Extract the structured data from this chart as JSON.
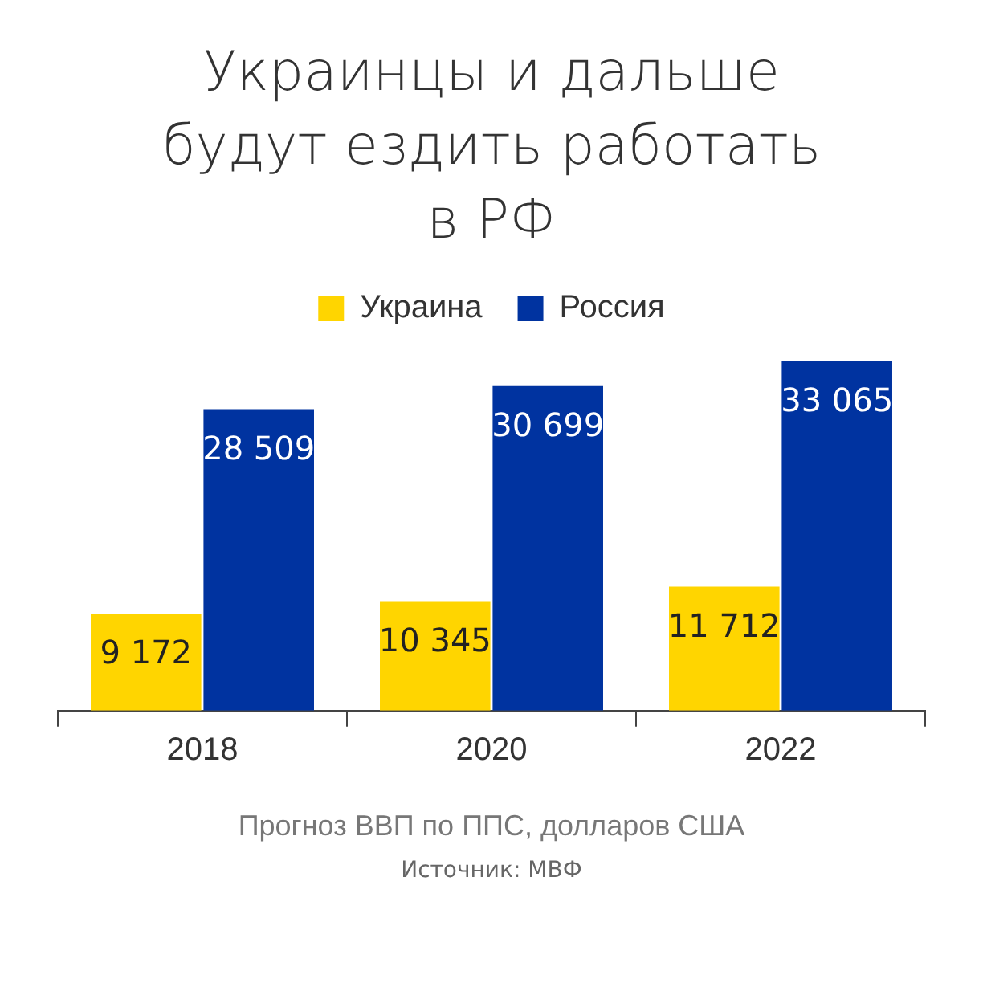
{
  "chart_data": {
    "type": "bar",
    "title": "Украинцы и дальше будут ездить работать в РФ",
    "xlabel": "Прогноз ВВП по ППС, долларов США",
    "categories": [
      "2018",
      "2020",
      "2022"
    ],
    "series": [
      {
        "name": "Украина",
        "color": "#ffd500",
        "values": [
          9172,
          10345,
          11712
        ],
        "value_labels": [
          "9 172",
          "10 345",
          "11 712"
        ]
      },
      {
        "name": "Россия",
        "color": "#0033a0",
        "values": [
          28509,
          30699,
          33065
        ],
        "value_labels": [
          "28 509",
          "30 699",
          "33 065"
        ]
      }
    ],
    "legend": "top",
    "tick_labels": "x",
    "annotations": [
      "Источник: МВФ"
    ]
  }
}
